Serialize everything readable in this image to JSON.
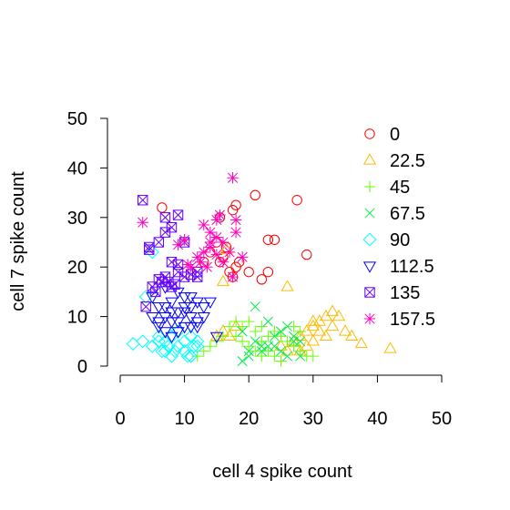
{
  "chart_data": {
    "type": "scatter",
    "xlabel": "cell 4 spike count",
    "ylabel": "cell 7 spike count",
    "xlim": [
      0,
      50
    ],
    "ylim": [
      0,
      50
    ],
    "xticks": [
      0,
      10,
      20,
      30,
      40,
      50
    ],
    "yticks": [
      0,
      10,
      20,
      30,
      40,
      50
    ],
    "grid": false,
    "legend_position": "top-right",
    "series": [
      {
        "name": "0",
        "marker": "circle",
        "color": "#ff0000",
        "points": [
          [
            6.5,
            32
          ],
          [
            15.5,
            30
          ],
          [
            18,
            32.5
          ],
          [
            21,
            34.5
          ],
          [
            27.5,
            33.5
          ],
          [
            17.5,
            31.5
          ],
          [
            23,
            25.5
          ],
          [
            24,
            25.5
          ],
          [
            29,
            22.5
          ],
          [
            13,
            21
          ],
          [
            15.5,
            21
          ],
          [
            16,
            22
          ],
          [
            18,
            20
          ],
          [
            17,
            19
          ],
          [
            17.5,
            18
          ],
          [
            20,
            19
          ],
          [
            23,
            19
          ],
          [
            22,
            17.5
          ],
          [
            16.5,
            24
          ],
          [
            15,
            25
          ],
          [
            14,
            23
          ],
          [
            18.5,
            21
          ]
        ]
      },
      {
        "name": "22.5",
        "marker": "triangle-up",
        "color": "#ffbb00",
        "points": [
          [
            16.5,
            23.5
          ],
          [
            26,
            16
          ],
          [
            16,
            17
          ],
          [
            17,
            6
          ],
          [
            18,
            8
          ],
          [
            30,
            9
          ],
          [
            31,
            9
          ],
          [
            32,
            10
          ],
          [
            33,
            11
          ],
          [
            34,
            10
          ],
          [
            35,
            7
          ],
          [
            36,
            6
          ],
          [
            37.5,
            4.5
          ],
          [
            42,
            3.5
          ],
          [
            28,
            6
          ],
          [
            29,
            7
          ],
          [
            30,
            8
          ],
          [
            31,
            7
          ],
          [
            32,
            6
          ],
          [
            33,
            8
          ],
          [
            27,
            5
          ],
          [
            28,
            3
          ],
          [
            29,
            4
          ],
          [
            30,
            5
          ],
          [
            15,
            6
          ],
          [
            16,
            7
          ],
          [
            25,
            4
          ],
          [
            26,
            3
          ]
        ]
      },
      {
        "name": "45",
        "marker": "plus",
        "color": "#66ff00",
        "points": [
          [
            17,
            8
          ],
          [
            18,
            9
          ],
          [
            19,
            8
          ],
          [
            20,
            9
          ],
          [
            21,
            7
          ],
          [
            22,
            8
          ],
          [
            23,
            6
          ],
          [
            24,
            7
          ],
          [
            25,
            6
          ],
          [
            26,
            5
          ],
          [
            27,
            4
          ],
          [
            28,
            3
          ],
          [
            29,
            2
          ],
          [
            30,
            2
          ],
          [
            20,
            4
          ],
          [
            21,
            3
          ],
          [
            22,
            5
          ],
          [
            23,
            3
          ],
          [
            24,
            2
          ],
          [
            25,
            1
          ],
          [
            15,
            5
          ],
          [
            16,
            6
          ],
          [
            14,
            4
          ],
          [
            13,
            3
          ],
          [
            12,
            2
          ],
          [
            18,
            6
          ],
          [
            19,
            5
          ],
          [
            27,
            8
          ],
          [
            28,
            7
          ],
          [
            22,
            2
          ]
        ]
      },
      {
        "name": "67.5",
        "marker": "cross",
        "color": "#00ee44",
        "points": [
          [
            21,
            12
          ],
          [
            23,
            9
          ],
          [
            26,
            8
          ],
          [
            27,
            6
          ],
          [
            28,
            5
          ],
          [
            24,
            4
          ],
          [
            25,
            3
          ],
          [
            22,
            4
          ],
          [
            20,
            3
          ],
          [
            19,
            1
          ],
          [
            19,
            7
          ],
          [
            20,
            2
          ],
          [
            26,
            2
          ],
          [
            24,
            6
          ],
          [
            23,
            4
          ],
          [
            22,
            3
          ],
          [
            25,
            7
          ],
          [
            27,
            5
          ],
          [
            28,
            2
          ],
          [
            21,
            5
          ]
        ]
      },
      {
        "name": "90",
        "marker": "diamond",
        "color": "#00ffff",
        "points": [
          [
            2,
            4.5
          ],
          [
            3.5,
            5
          ],
          [
            5,
            4
          ],
          [
            6,
            5
          ],
          [
            7,
            3
          ],
          [
            8,
            2
          ],
          [
            9,
            4
          ],
          [
            10,
            3
          ],
          [
            11,
            2
          ],
          [
            12,
            4
          ],
          [
            5,
            23
          ],
          [
            4,
            14
          ],
          [
            6,
            6
          ],
          [
            7,
            5
          ],
          [
            8,
            6
          ],
          [
            9,
            7
          ],
          [
            10,
            5
          ],
          [
            11,
            6
          ],
          [
            12,
            5
          ],
          [
            6.5,
            3
          ],
          [
            8.5,
            3
          ],
          [
            10.5,
            2
          ],
          [
            11.5,
            4
          ],
          [
            7.5,
            4
          ]
        ]
      },
      {
        "name": "112.5",
        "marker": "triangle-down",
        "color": "#0000ff",
        "points": [
          [
            5,
            14
          ],
          [
            6,
            12
          ],
          [
            7,
            10
          ],
          [
            8,
            11
          ],
          [
            9,
            9
          ],
          [
            10,
            12
          ],
          [
            11,
            14
          ],
          [
            12,
            13
          ],
          [
            13,
            12
          ],
          [
            14,
            13
          ],
          [
            11,
            10
          ],
          [
            10,
            8
          ],
          [
            9,
            7
          ],
          [
            8,
            6
          ],
          [
            7,
            7
          ],
          [
            6,
            8
          ],
          [
            5,
            10
          ],
          [
            15,
            6
          ],
          [
            11,
            8
          ],
          [
            12,
            9
          ],
          [
            8,
            13
          ],
          [
            7,
            16
          ],
          [
            9,
            15
          ],
          [
            10,
            11
          ],
          [
            6,
            9
          ],
          [
            7,
            12
          ],
          [
            8,
            9
          ],
          [
            12,
            8
          ],
          [
            10,
            14
          ],
          [
            9,
            11
          ],
          [
            11,
            12
          ],
          [
            13,
            10
          ]
        ]
      },
      {
        "name": "135",
        "marker": "square-x",
        "color": "#6600ff",
        "points": [
          [
            3.5,
            33.5
          ],
          [
            4.5,
            24
          ],
          [
            6,
            25
          ],
          [
            7,
            27
          ],
          [
            8,
            28
          ],
          [
            9,
            30.5
          ],
          [
            7,
            30
          ],
          [
            4.5,
            23.5
          ],
          [
            5.5,
            15
          ],
          [
            6.5,
            17
          ],
          [
            7,
            18
          ],
          [
            8,
            16
          ],
          [
            9,
            19
          ],
          [
            10,
            18
          ],
          [
            11,
            18.5
          ],
          [
            12,
            19
          ],
          [
            8,
            21
          ],
          [
            9,
            20.5
          ],
          [
            4,
            12
          ],
          [
            8.5,
            16.5
          ],
          [
            6,
            17.5
          ],
          [
            7.5,
            17
          ],
          [
            10,
            25
          ],
          [
            12,
            18
          ],
          [
            5,
            16
          ]
        ]
      },
      {
        "name": "157.5",
        "marker": "asterisk",
        "color": "#ff00bb",
        "points": [
          [
            3.5,
            29
          ],
          [
            17.5,
            38
          ],
          [
            15,
            29.5
          ],
          [
            15.5,
            30.5
          ],
          [
            13,
            28.5
          ],
          [
            18,
            29.5
          ],
          [
            18,
            27
          ],
          [
            14,
            27
          ],
          [
            9,
            24.5
          ],
          [
            10,
            25.5
          ],
          [
            12,
            22
          ],
          [
            13,
            23
          ],
          [
            14,
            24
          ],
          [
            15,
            22.5
          ],
          [
            16,
            21
          ],
          [
            17,
            23
          ],
          [
            17.5,
            18
          ],
          [
            19,
            22
          ],
          [
            12.5,
            21
          ],
          [
            11,
            20
          ],
          [
            10.5,
            20.5
          ],
          [
            13.5,
            20
          ],
          [
            15,
            26
          ],
          [
            16,
            25
          ],
          [
            14,
            25
          ]
        ]
      }
    ]
  }
}
